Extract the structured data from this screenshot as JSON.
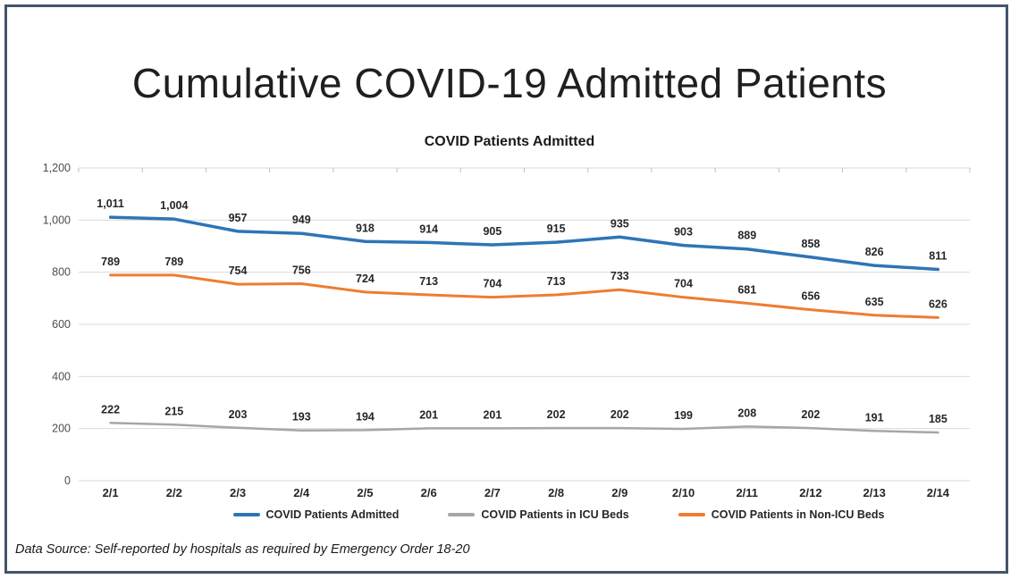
{
  "page": {
    "title": "Cumulative COVID-19 Admitted Patients",
    "source_note": "Data Source: Self-reported by hospitals as required by Emergency Order 18-20",
    "border_color": "#44546A"
  },
  "chart_data": {
    "type": "line",
    "title": "COVID Patients Admitted",
    "categories": [
      "2/1",
      "2/2",
      "2/3",
      "2/4",
      "2/5",
      "2/6",
      "2/7",
      "2/8",
      "2/9",
      "2/10",
      "2/11",
      "2/12",
      "2/13",
      "2/14"
    ],
    "series": [
      {
        "name": "COVID Patients Admitted",
        "color": "#2E75B6",
        "line_width": 3.5,
        "values": [
          1011,
          1004,
          957,
          949,
          918,
          914,
          905,
          915,
          935,
          903,
          889,
          858,
          826,
          811
        ]
      },
      {
        "name": "COVID Patients in ICU Beds",
        "color": "#A6A6A6",
        "line_width": 2.5,
        "values": [
          222,
          215,
          203,
          193,
          194,
          201,
          201,
          202,
          202,
          199,
          208,
          202,
          191,
          185
        ]
      },
      {
        "name": "COVID Patients in Non-ICU Beds",
        "color": "#ED7D31",
        "line_width": 3,
        "values": [
          789,
          789,
          754,
          756,
          724,
          713,
          704,
          713,
          733,
          704,
          681,
          656,
          635,
          626
        ]
      }
    ],
    "ylim": [
      0,
      1200
    ],
    "ytick_step": 200,
    "ytick_labels": [
      "0",
      "200",
      "400",
      "600",
      "800",
      "1,000",
      "1,200"
    ],
    "grid": true,
    "legend_position": "bottom",
    "gridline_color": "#D9D9D9",
    "tick_color": "#BFBFBF",
    "y_label_color": "#4d4d4d",
    "x_label_color": "#262626",
    "data_label_color": "#262626"
  }
}
